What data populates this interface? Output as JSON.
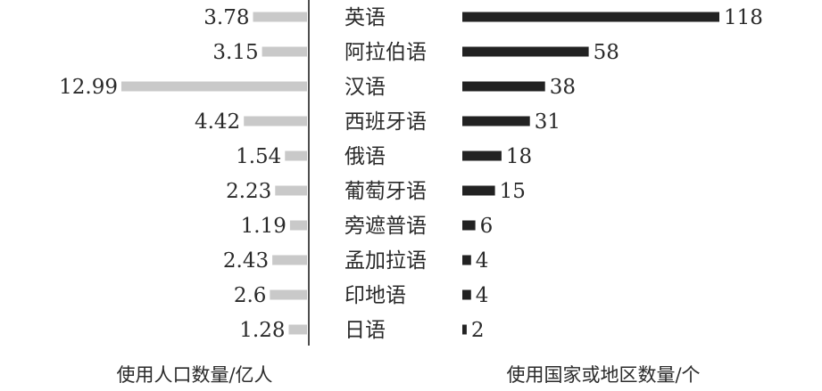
{
  "chart_data": {
    "type": "bar",
    "categories": [
      "英语",
      "阿拉伯语",
      "汉语",
      "西班牙语",
      "俄语",
      "葡萄牙语",
      "旁遮普语",
      "孟加拉语",
      "印地语",
      "日语"
    ],
    "series": [
      {
        "values": [
          3.78,
          3.15,
          12.99,
          4.42,
          1.54,
          2.23,
          1.19,
          2.43,
          2.6,
          1.28
        ],
        "value_labels": [
          "3.78",
          "3.15",
          "12.99",
          "4.42",
          "1.54",
          "2.23",
          "1.19",
          "2.43",
          "2.6",
          "1.28"
        ]
      },
      {
        "values": [
          118,
          58,
          38,
          31,
          18,
          15,
          6,
          4,
          4,
          2
        ],
        "value_labels": [
          "118",
          "58",
          "38",
          "31",
          "18",
          "15",
          "6",
          "4",
          "4",
          "2"
        ]
      }
    ],
    "left_axis_label": "使用人口数量/亿人",
    "right_axis_label": "使用国家或地区数量/个",
    "colors": {
      "left": "#c9c9c9",
      "right": "#222222"
    },
    "left_xlim": [
      0,
      12.99
    ],
    "right_xlim": [
      0,
      118
    ]
  }
}
